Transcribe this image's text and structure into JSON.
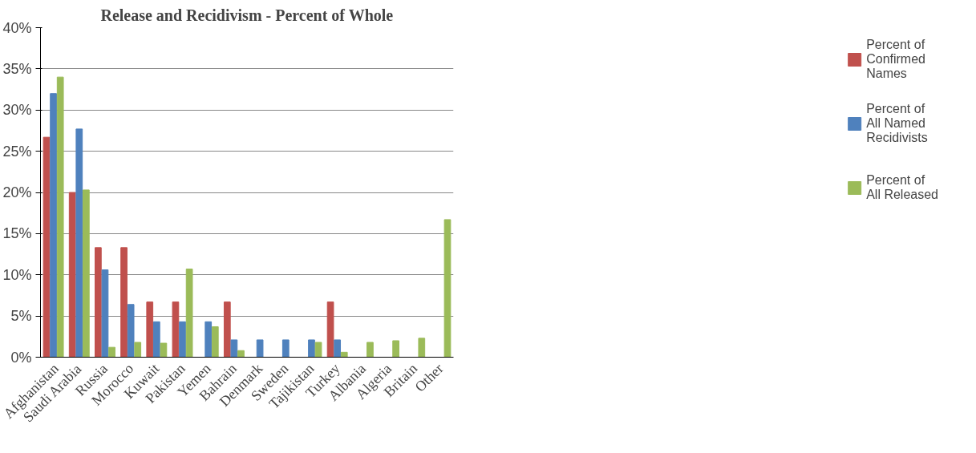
{
  "chart_data": {
    "type": "bar",
    "title": "Release and Recidivism - Percent of Whole",
    "categories": [
      "Afghanistan",
      "Saudi Arabia",
      "Russia",
      "Morocco",
      "Kuwait",
      "Pakistan",
      "Yemen",
      "Bahrain",
      "Denmark",
      "Sweden",
      "Tajikistan",
      "Turkey",
      "Albania",
      "Algeria",
      "Britain",
      "Other"
    ],
    "series": [
      {
        "name": "Percent of Confirmed Names",
        "color": "#c0504d",
        "values": [
          26.7,
          20.0,
          13.3,
          13.3,
          6.7,
          6.7,
          0,
          6.7,
          0,
          0,
          0,
          6.7,
          0,
          0,
          0,
          0
        ]
      },
      {
        "name": "Percent of All Named Recidivists",
        "color": "#4f81bd",
        "values": [
          32.0,
          27.7,
          10.6,
          6.4,
          4.3,
          4.3,
          4.3,
          2.1,
          2.1,
          2.1,
          2.1,
          2.1,
          0,
          0,
          0,
          0
        ]
      },
      {
        "name": "Percent of All Released",
        "color": "#9bbb59",
        "values": [
          34.0,
          20.3,
          1.2,
          1.8,
          1.7,
          10.7,
          3.7,
          0.8,
          0,
          0,
          1.8,
          0.6,
          1.8,
          2.0,
          2.3,
          16.7
        ]
      }
    ],
    "ylim": [
      0,
      40
    ],
    "yticks": [
      {
        "value": 0,
        "label": "0%"
      },
      {
        "value": 5,
        "label": "5%"
      },
      {
        "value": 10,
        "label": "10%"
      },
      {
        "value": 15,
        "label": "15%"
      },
      {
        "value": 20,
        "label": "20%"
      },
      {
        "value": 25,
        "label": "25%"
      },
      {
        "value": 30,
        "label": "30%"
      },
      {
        "value": 35,
        "label": "35%"
      },
      {
        "value": 40,
        "label": "40%"
      }
    ],
    "grid": "y",
    "legend": "right"
  }
}
